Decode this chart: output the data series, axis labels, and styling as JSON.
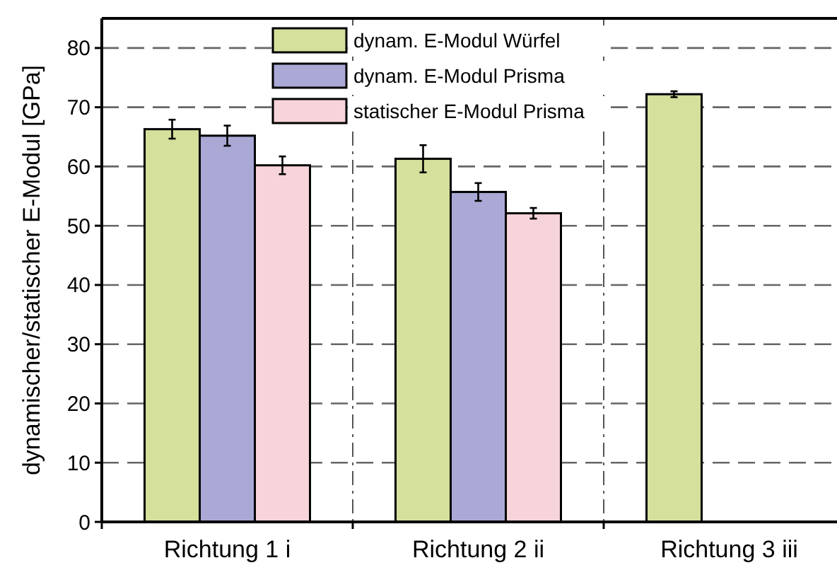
{
  "chart_data": {
    "type": "bar",
    "ylabel": "dynamischer/statischer E-Modul [GPa]",
    "categories": [
      "Richtung 1 i",
      "Richtung 2 ii",
      "Richtung 3 iii"
    ],
    "series": [
      {
        "name": "dynam. E-Modul Würfel",
        "color": "#d4e09b",
        "values": [
          66.3,
          61.3,
          72.2
        ],
        "errors": [
          1.6,
          2.3,
          0.5
        ]
      },
      {
        "name": "dynam. E-Modul Prisma",
        "color": "#aaa9d6",
        "values": [
          65.2,
          55.7,
          null
        ],
        "errors": [
          1.7,
          1.5,
          null
        ]
      },
      {
        "name": "statischer E-Modul Prisma",
        "color": "#f7d4d9",
        "values": [
          60.2,
          52.1,
          null
        ],
        "errors": [
          1.5,
          0.9,
          null
        ]
      }
    ],
    "ylim": [
      0,
      85
    ],
    "yticks": [
      0,
      10,
      20,
      30,
      40,
      50,
      60,
      70,
      80
    ],
    "grid": true,
    "legend": "top"
  }
}
